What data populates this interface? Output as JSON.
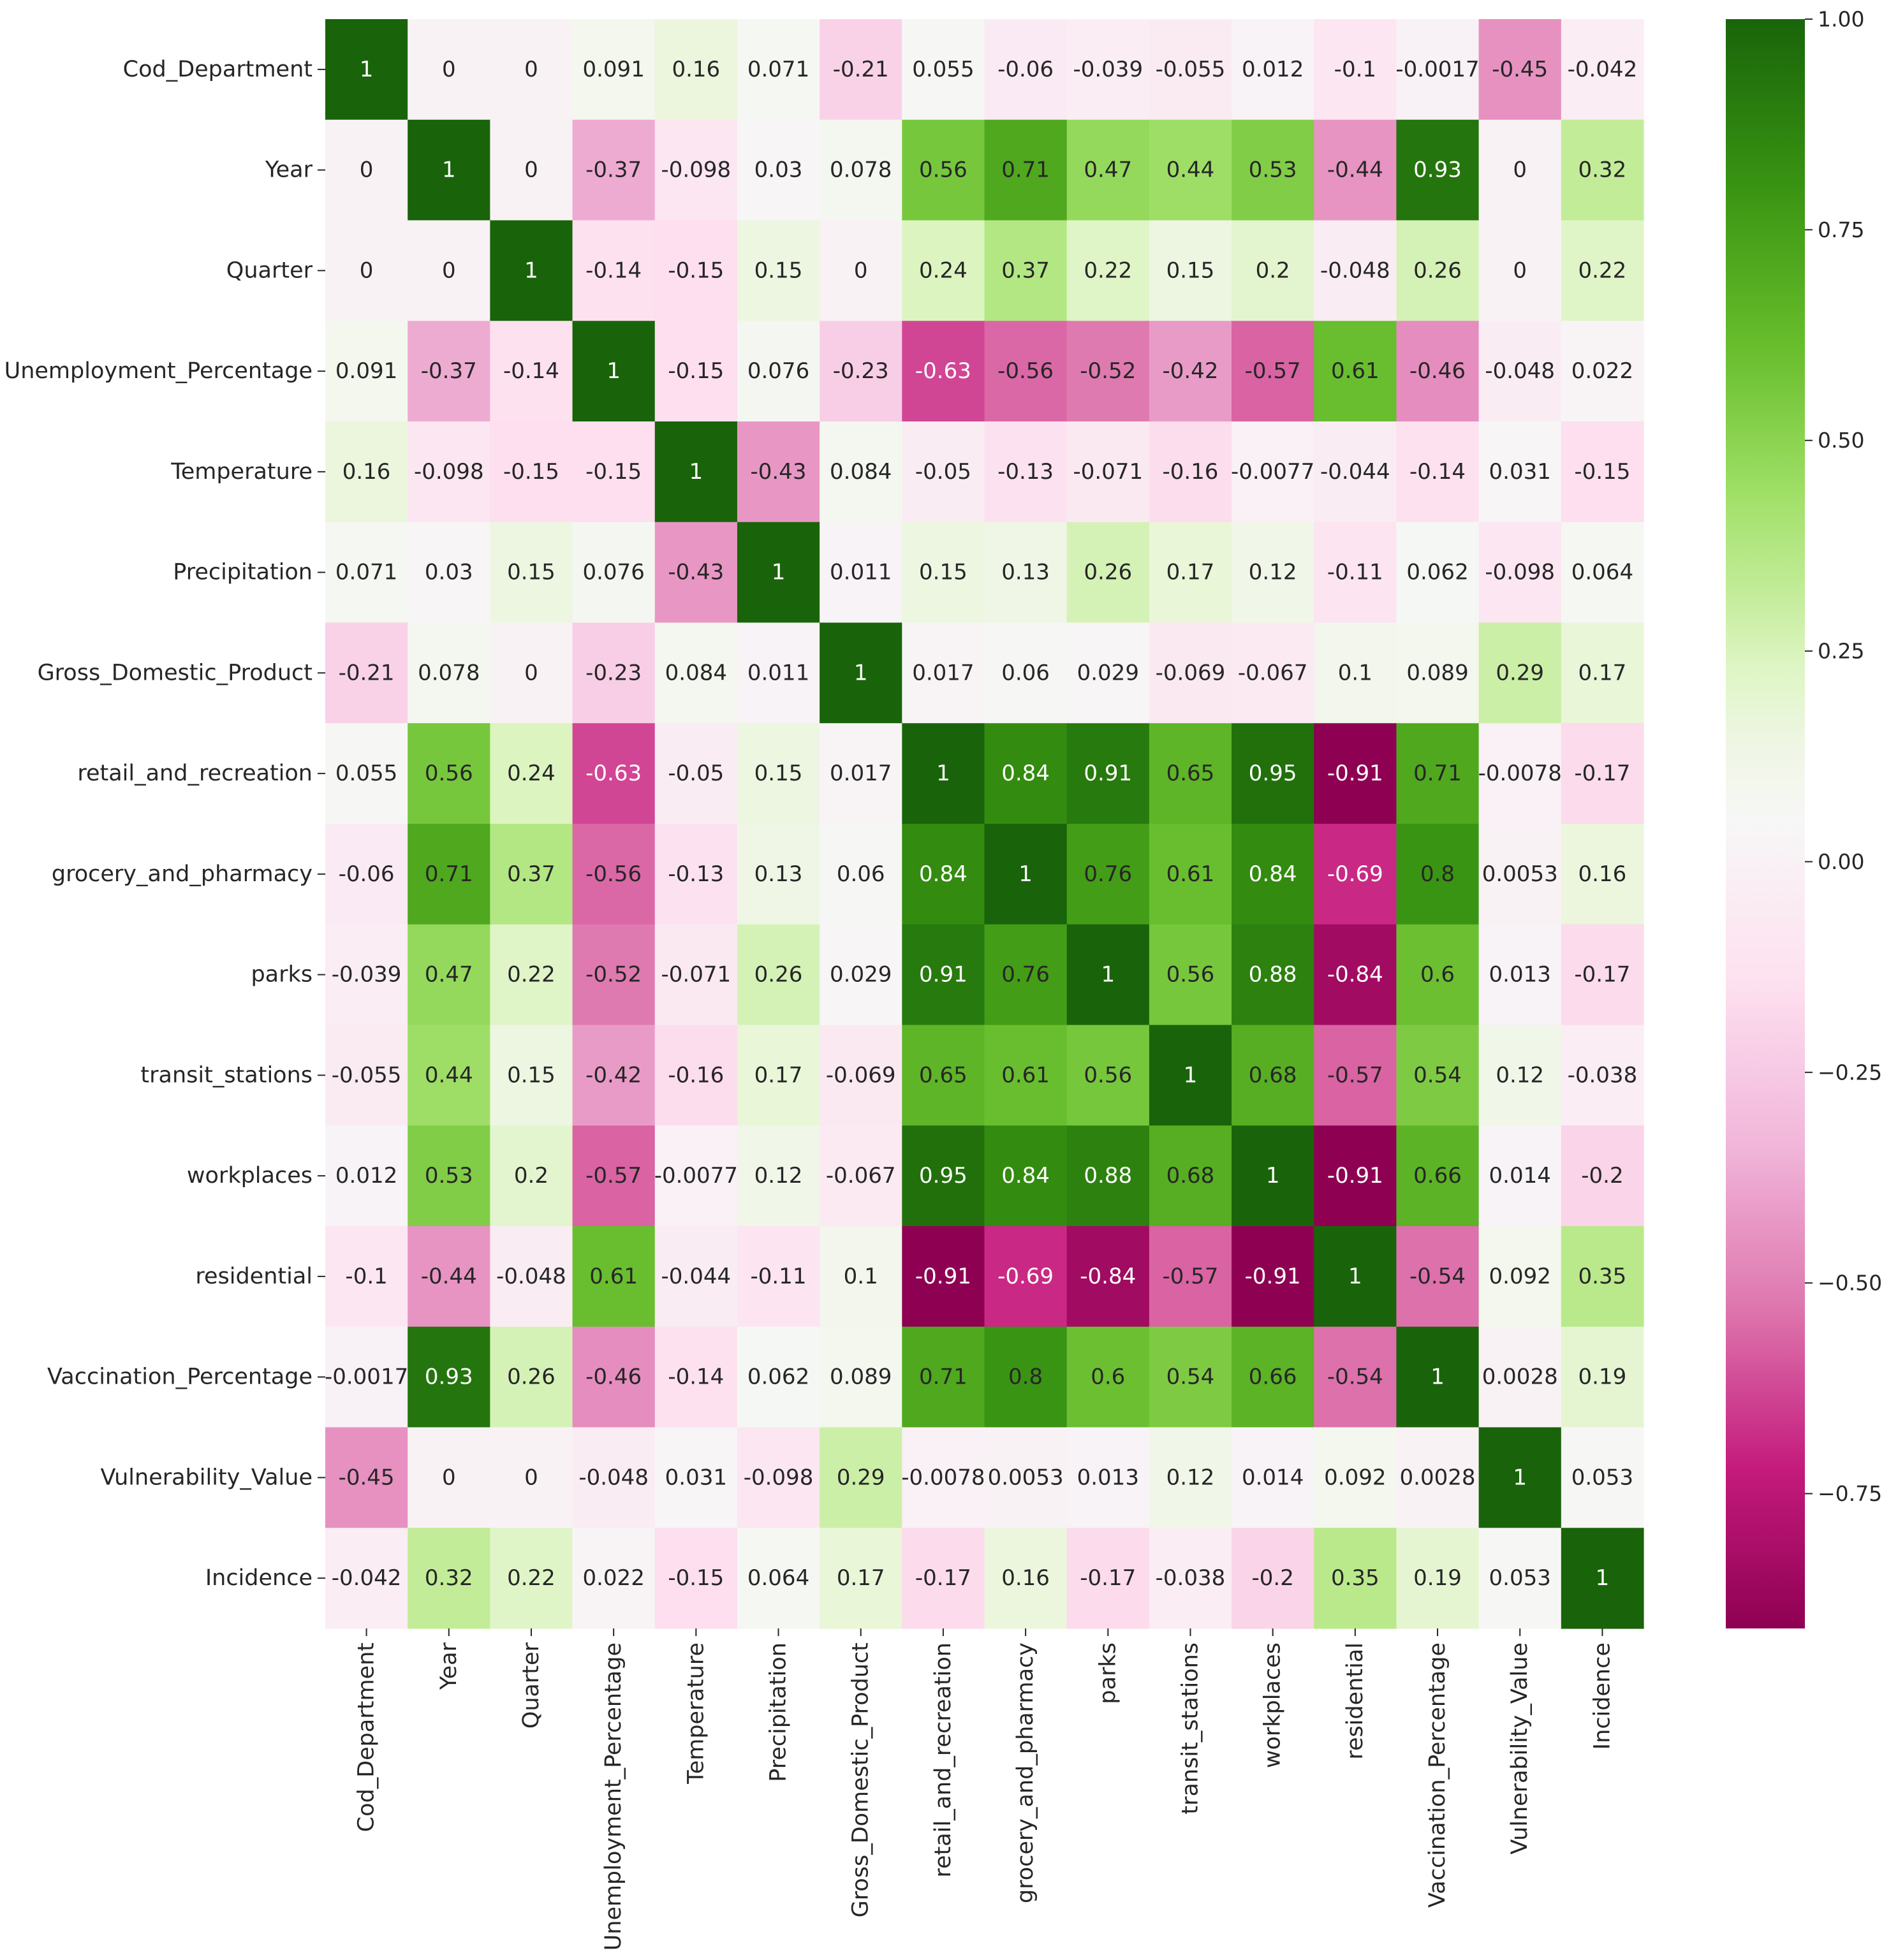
{
  "chart_data": {
    "type": "heatmap",
    "title": "",
    "xlabel": "",
    "ylabel": "",
    "labels": [
      "Cod_Department",
      "Year",
      "Quarter",
      "Unemployment_Percentage",
      "Temperature",
      "Precipitation",
      "Gross_Domestic_Product",
      "retail_and_recreation",
      "grocery_and_pharmacy",
      "parks",
      "transit_stations",
      "workplaces",
      "residential",
      "Vaccination_Percentage",
      "Vulnerability_Value",
      "Incidence"
    ],
    "values": [
      [
        1,
        0,
        0,
        0.091,
        0.16,
        0.071,
        -0.21,
        0.055,
        -0.06,
        -0.039,
        -0.055,
        0.012,
        -0.1,
        -0.0017,
        -0.45,
        -0.042
      ],
      [
        0,
        1,
        0,
        -0.37,
        -0.098,
        0.03,
        0.078,
        0.56,
        0.71,
        0.47,
        0.44,
        0.53,
        -0.44,
        0.93,
        0,
        0.32
      ],
      [
        0,
        0,
        1,
        -0.14,
        -0.15,
        0.15,
        0,
        0.24,
        0.37,
        0.22,
        0.15,
        0.2,
        -0.048,
        0.26,
        0,
        0.22
      ],
      [
        0.091,
        -0.37,
        -0.14,
        1,
        -0.15,
        0.076,
        -0.23,
        -0.63,
        -0.56,
        -0.52,
        -0.42,
        -0.57,
        0.61,
        -0.46,
        -0.048,
        0.022
      ],
      [
        0.16,
        -0.098,
        -0.15,
        -0.15,
        1,
        -0.43,
        0.084,
        -0.05,
        -0.13,
        -0.071,
        -0.16,
        -0.0077,
        -0.044,
        -0.14,
        0.031,
        -0.15
      ],
      [
        0.071,
        0.03,
        0.15,
        0.076,
        -0.43,
        1,
        0.011,
        0.15,
        0.13,
        0.26,
        0.17,
        0.12,
        -0.11,
        0.062,
        -0.098,
        0.064
      ],
      [
        -0.21,
        0.078,
        0,
        -0.23,
        0.084,
        0.011,
        1,
        0.017,
        0.06,
        0.029,
        -0.069,
        -0.067,
        0.1,
        0.089,
        0.29,
        0.17
      ],
      [
        0.055,
        0.56,
        0.24,
        -0.63,
        -0.05,
        0.15,
        0.017,
        1,
        0.84,
        0.91,
        0.65,
        0.95,
        -0.91,
        0.71,
        -0.0078,
        -0.17
      ],
      [
        -0.06,
        0.71,
        0.37,
        -0.56,
        -0.13,
        0.13,
        0.06,
        0.84,
        1,
        0.76,
        0.61,
        0.84,
        -0.69,
        0.8,
        0.0053,
        0.16
      ],
      [
        -0.039,
        0.47,
        0.22,
        -0.52,
        -0.071,
        0.26,
        0.029,
        0.91,
        0.76,
        1,
        0.56,
        0.88,
        -0.84,
        0.6,
        0.013,
        -0.17
      ],
      [
        -0.055,
        0.44,
        0.15,
        -0.42,
        -0.16,
        0.17,
        -0.069,
        0.65,
        0.61,
        0.56,
        1,
        0.68,
        -0.57,
        0.54,
        0.12,
        -0.038
      ],
      [
        0.012,
        0.53,
        0.2,
        -0.57,
        -0.0077,
        0.12,
        -0.067,
        0.95,
        0.84,
        0.88,
        0.68,
        1,
        -0.91,
        0.66,
        0.014,
        -0.2
      ],
      [
        -0.1,
        -0.44,
        -0.048,
        0.61,
        -0.044,
        -0.11,
        0.1,
        -0.91,
        -0.69,
        -0.84,
        -0.57,
        -0.91,
        1,
        -0.54,
        0.092,
        0.35
      ],
      [
        -0.0017,
        0.93,
        0.26,
        -0.46,
        -0.14,
        0.062,
        0.089,
        0.71,
        0.8,
        0.6,
        0.54,
        0.66,
        -0.54,
        1,
        0.0028,
        0.19
      ],
      [
        -0.45,
        0,
        0,
        -0.048,
        0.031,
        -0.098,
        0.29,
        -0.0078,
        0.0053,
        0.013,
        0.12,
        0.014,
        0.092,
        0.0028,
        1,
        0.053
      ],
      [
        -0.042,
        0.32,
        0.22,
        0.022,
        -0.15,
        0.064,
        0.17,
        -0.17,
        0.16,
        -0.17,
        -0.038,
        -0.2,
        0.35,
        0.19,
        0.053,
        1
      ]
    ],
    "colorbar": {
      "colormap": "PiYG",
      "vmin": -0.91,
      "vmax": 1.0,
      "ticks": [
        1.0,
        0.75,
        0.5,
        0.25,
        0.0,
        -0.25,
        -0.5,
        -0.75
      ],
      "tick_labels": [
        "1.00",
        "0.75",
        "0.50",
        "0.25",
        "0.00",
        "−0.25",
        "−0.50",
        "−0.75"
      ]
    },
    "annotated": true,
    "grid": false,
    "legend": "colorbar-right"
  }
}
